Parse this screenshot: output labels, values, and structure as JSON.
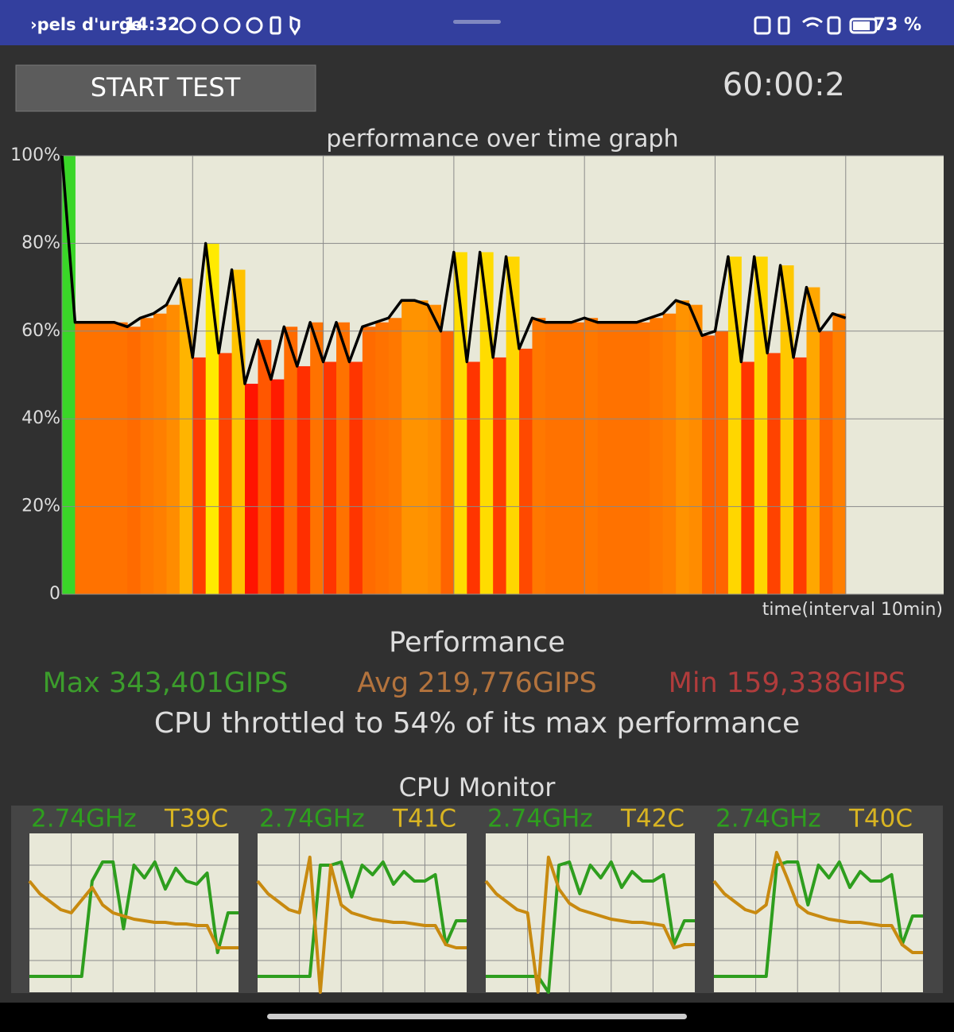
{
  "status_bar": {
    "notification": "›pels d'urge",
    "time": "14:32",
    "battery": "73 %"
  },
  "controls": {
    "button": "START TEST",
    "timer": "60:00:2"
  },
  "summary": {
    "title": "Performance",
    "max": "Max 343,401GIPS",
    "avg": "Avg 219,776GIPS",
    "min": "Min 159,338GIPS",
    "throttle": "CPU throttled to 54% of its max performance",
    "monitor_title": "CPU Monitor"
  },
  "chart_data": [
    {
      "type": "line",
      "title": "performance over time graph",
      "x_label": "time(interval 10min)",
      "x": [
        0,
        1,
        2,
        3,
        4,
        5,
        6,
        7,
        8,
        9,
        10,
        11,
        12,
        13,
        14,
        15,
        16,
        17,
        18,
        19,
        20,
        21,
        22,
        23,
        24,
        25,
        26,
        27,
        28,
        29,
        30,
        31,
        32,
        33,
        34,
        35,
        36,
        37,
        38,
        39,
        40,
        41,
        42,
        43,
        44,
        45,
        46,
        47,
        48,
        49,
        50,
        51,
        52,
        53,
        54,
        55,
        56,
        57,
        58,
        59,
        60
      ],
      "values": [
        100,
        62,
        62,
        62,
        62,
        61,
        63,
        64,
        66,
        72,
        54,
        80,
        55,
        74,
        48,
        58,
        49,
        61,
        52,
        62,
        53,
        62,
        53,
        61,
        62,
        63,
        67,
        67,
        66,
        60,
        78,
        53,
        78,
        54,
        77,
        56,
        63,
        62,
        62,
        62,
        63,
        62,
        62,
        62,
        62,
        63,
        64,
        67,
        66,
        59,
        60,
        77,
        53,
        77,
        55,
        75,
        54,
        70,
        60,
        64,
        63
      ],
      "color": "#000000",
      "background": "#e8e8d8",
      "xlim": [
        0,
        67.5
      ],
      "xticks": [
        0,
        10,
        20,
        30,
        40,
        50,
        60
      ],
      "ylim": [
        0,
        100
      ],
      "yticks": [
        0,
        {
          "value": 20,
          "label": "20%"
        },
        {
          "value": 40,
          "label": "40%"
        },
        {
          "value": 60,
          "label": "60%"
        },
        {
          "value": 80,
          "label": "80%"
        },
        {
          "value": 100,
          "label": "100%"
        }
      ],
      "grid": true
    },
    {
      "type": "line",
      "freq_label": "2.74GHz",
      "temp_label": "T39C",
      "ylim": [
        0,
        100
      ],
      "yticks": [
        20,
        40,
        60,
        80
      ],
      "xlim": [
        0,
        20
      ],
      "xticks": [
        4,
        8,
        12,
        16
      ],
      "grid": true,
      "series": [
        {
          "color": "#2e9e1e",
          "values": [
            10,
            10,
            10,
            10,
            10,
            10,
            70,
            82,
            82,
            40,
            80,
            72,
            82,
            65,
            78,
            70,
            68,
            75,
            25,
            50,
            50
          ]
        },
        {
          "color": "#c88a10",
          "values": [
            70,
            62,
            57,
            52,
            50,
            58,
            66,
            55,
            50,
            48,
            46,
            45,
            44,
            44,
            43,
            43,
            42,
            42,
            28,
            28,
            28
          ]
        }
      ]
    },
    {
      "type": "line",
      "freq_label": "2.74GHz",
      "temp_label": "T41C",
      "ylim": [
        0,
        100
      ],
      "yticks": [
        20,
        40,
        60,
        80
      ],
      "xlim": [
        0,
        20
      ],
      "xticks": [
        4,
        8,
        12,
        16
      ],
      "grid": true,
      "series": [
        {
          "color": "#2e9e1e",
          "values": [
            10,
            10,
            10,
            10,
            10,
            10,
            80,
            80,
            82,
            60,
            80,
            74,
            82,
            68,
            76,
            70,
            70,
            74,
            30,
            45,
            45
          ]
        },
        {
          "color": "#c88a10",
          "values": [
            70,
            62,
            57,
            52,
            50,
            85,
            0,
            80,
            55,
            50,
            48,
            46,
            45,
            44,
            44,
            43,
            42,
            42,
            30,
            28,
            28
          ]
        }
      ]
    },
    {
      "type": "line",
      "freq_label": "2.74GHz",
      "temp_label": "T42C",
      "ylim": [
        0,
        100
      ],
      "yticks": [
        20,
        40,
        60,
        80
      ],
      "xlim": [
        0,
        20
      ],
      "xticks": [
        4,
        8,
        12,
        16
      ],
      "grid": true,
      "series": [
        {
          "color": "#2e9e1e",
          "values": [
            10,
            10,
            10,
            10,
            10,
            10,
            0,
            80,
            82,
            62,
            80,
            72,
            82,
            66,
            76,
            70,
            70,
            74,
            30,
            45,
            45
          ]
        },
        {
          "color": "#c88a10",
          "values": [
            70,
            62,
            57,
            52,
            50,
            0,
            85,
            65,
            56,
            52,
            50,
            48,
            46,
            45,
            44,
            44,
            43,
            42,
            28,
            30,
            30
          ]
        }
      ]
    },
    {
      "type": "line",
      "freq_label": "2.74GHz",
      "temp_label": "T40C",
      "ylim": [
        0,
        100
      ],
      "yticks": [
        20,
        40,
        60,
        80
      ],
      "xlim": [
        0,
        20
      ],
      "xticks": [
        4,
        8,
        12,
        16
      ],
      "grid": true,
      "series": [
        {
          "color": "#2e9e1e",
          "values": [
            10,
            10,
            10,
            10,
            10,
            10,
            80,
            82,
            82,
            55,
            80,
            72,
            82,
            66,
            76,
            70,
            70,
            74,
            30,
            48,
            48
          ]
        },
        {
          "color": "#c88a10",
          "values": [
            70,
            62,
            57,
            52,
            50,
            55,
            88,
            72,
            55,
            50,
            48,
            46,
            45,
            44,
            44,
            43,
            42,
            42,
            30,
            25,
            25
          ]
        }
      ]
    }
  ]
}
